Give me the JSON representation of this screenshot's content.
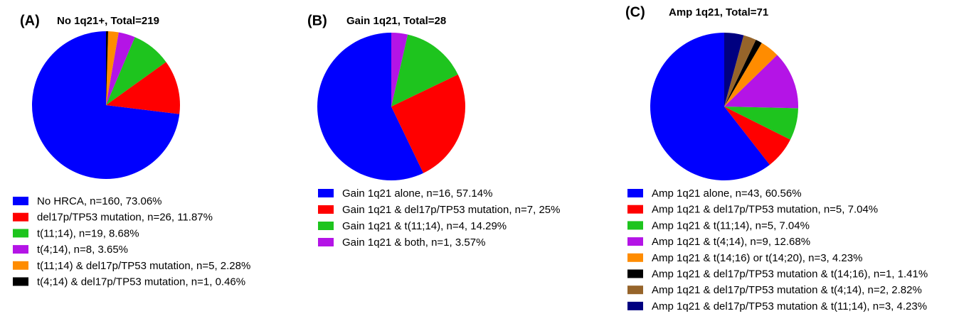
{
  "chart_data": [
    {
      "type": "pie",
      "panel": "(A)",
      "title": "No 1q21+, Total=219",
      "categories": [
        "No HRCA, n=160, 73.06%",
        "del17p/TP53 mutation, n=26, 11.87%",
        "t(11;14), n=19, 8.68%",
        "t(4;14), n=8, 3.65%",
        "t(11;14) & del17p/TP53 mutation, n=5, 2.28%",
        "t(4;14) & del17p/TP53 mutation, n=1, 0.46%"
      ],
      "values": [
        73.06,
        11.87,
        8.68,
        3.65,
        2.28,
        0.46
      ],
      "colors": [
        "#0000ff",
        "#ff0000",
        "#1ec41e",
        "#b414e6",
        "#ff8c00",
        "#000000"
      ]
    },
    {
      "type": "pie",
      "panel": "(B)",
      "title": "Gain 1q21, Total=28",
      "categories": [
        "Gain 1q21 alone, n=16, 57.14%",
        "Gain 1q21 & del17p/TP53 mutation, n=7, 25%",
        "Gain 1q21 & t(11;14), n=4, 14.29%",
        "Gain 1q21 & both, n=1, 3.57%"
      ],
      "values": [
        57.14,
        25,
        14.29,
        3.57
      ],
      "colors": [
        "#0000ff",
        "#ff0000",
        "#1ec41e",
        "#b414e6"
      ]
    },
    {
      "type": "pie",
      "panel": "(C)",
      "title": "Amp 1q21, Total=71",
      "categories": [
        "Amp 1q21 alone, n=43, 60.56%",
        "Amp 1q21 & del17p/TP53 mutation, n=5, 7.04%",
        "Amp 1q21 & t(11;14), n=5, 7.04%",
        "Amp 1q21 & t(4;14), n=9, 12.68%",
        "Amp 1q21 & t(14;16) or t(14;20), n=3, 4.23%",
        "Amp 1q21 & del17p/TP53 mutation & t(14;16), n=1, 1.41%",
        "Amp 1q21 & del17p/TP53 mutation & t(4;14), n=2, 2.82%",
        "Amp 1q21 & del17p/TP53 mutation & t(11;14), n=3, 4.23%"
      ],
      "values": [
        60.56,
        7.04,
        7.04,
        12.68,
        4.23,
        1.41,
        2.82,
        4.23
      ],
      "colors": [
        "#0000ff",
        "#ff0000",
        "#1ec41e",
        "#b414e6",
        "#ff8c00",
        "#000000",
        "#96642a",
        "#000080"
      ]
    }
  ]
}
